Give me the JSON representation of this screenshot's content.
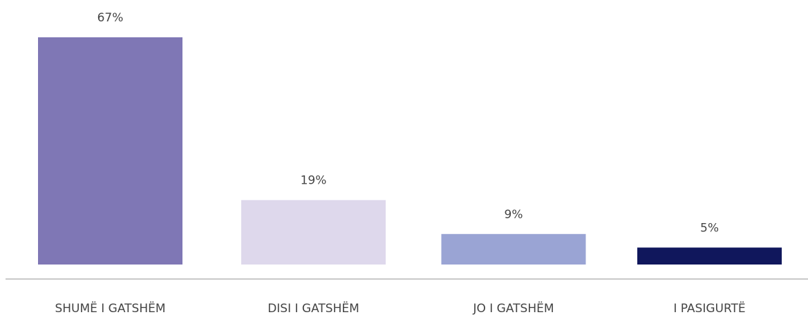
{
  "chart_data": {
    "type": "bar",
    "categories": [
      "SHUMË I GATSHËM",
      "DISI I GATSHËM",
      "JO I GATSHËM",
      "I PASIGURTË"
    ],
    "values": [
      67,
      19,
      9,
      5
    ],
    "value_labels": [
      "67%",
      "19%",
      "9%",
      "5%"
    ],
    "colors": [
      "#7f77b5",
      "#ded8ec",
      "#9aa4d4",
      "#10175c"
    ]
  }
}
